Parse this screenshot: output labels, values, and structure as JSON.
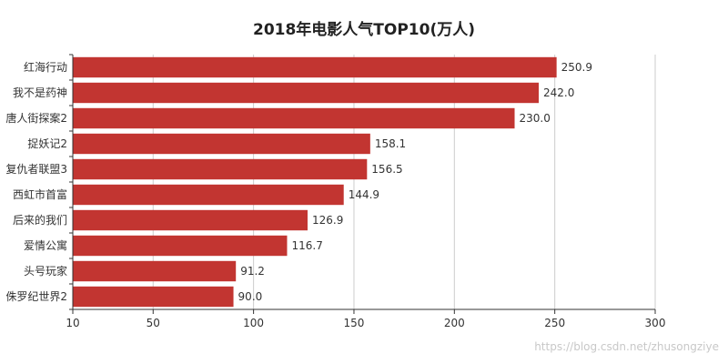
{
  "chart_data": {
    "type": "bar",
    "orientation": "horizontal",
    "title": "2018年电影人气TOP10(万人)",
    "categories": [
      "红海行动",
      "我不是药神",
      "唐人街探案2",
      "捉妖记2",
      "复仇者联盟3",
      "西虹市首富",
      "后来的我们",
      "爱情公寓",
      "头号玩家",
      "侏罗纪世界2"
    ],
    "values": [
      250.9,
      242.0,
      230.0,
      158.1,
      156.5,
      144.9,
      126.9,
      116.7,
      91.2,
      90.0
    ],
    "value_labels": [
      "250.9",
      "242.0",
      "230.0",
      "158.1",
      "156.5",
      "144.9",
      "126.9",
      "116.7",
      "91.2",
      "90.0"
    ],
    "xlim": [
      10,
      300
    ],
    "xticks": [
      10,
      50,
      100,
      150,
      200,
      250,
      300
    ],
    "xtick_labels": [
      "10",
      "50",
      "100",
      "150",
      "200",
      "250",
      "300"
    ],
    "grid": true,
    "bar_color": "#c23531",
    "xlabel": "",
    "ylabel": ""
  },
  "watermark": "https://blog.csdn.net/zhusongziye"
}
